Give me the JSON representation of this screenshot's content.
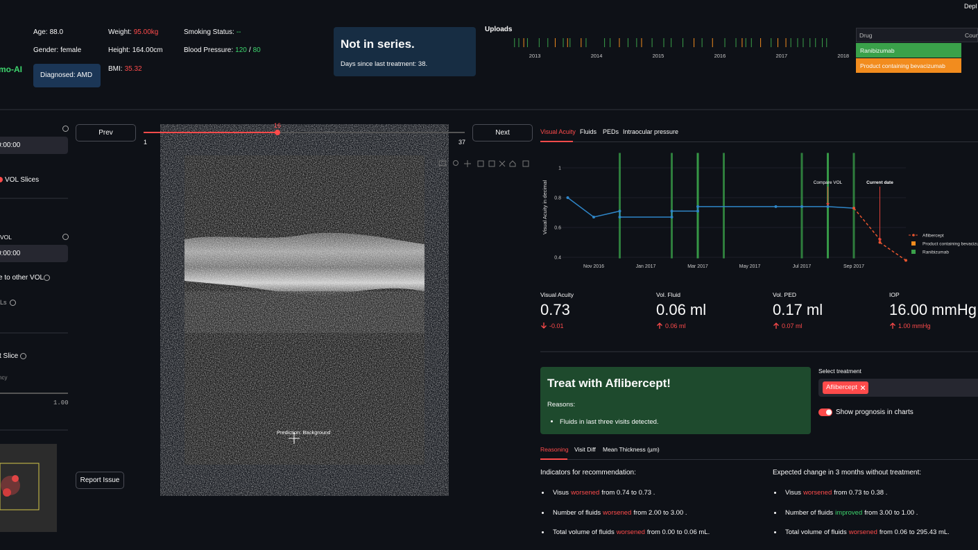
{
  "header": {
    "logo": "mo-AI",
    "deploy": "Depl",
    "fields": [
      {
        "label": "Age:",
        "value": "88.0"
      },
      {
        "label": "Gender:",
        "value": "female"
      },
      {
        "label": "Weight:",
        "value": "95.00kg",
        "color": "#ff4b4b"
      },
      {
        "label": "Height:",
        "value": "164.00cm"
      },
      {
        "label": "BMI:",
        "value": "35.32",
        "color": "#ff4b4b"
      },
      {
        "label": "Smoking Status:",
        "value": "--",
        "color": "#3dd56d"
      }
    ],
    "blood_pressure": {
      "label": "Blood Pressure:",
      "systolic": "120",
      "separator": "/",
      "diastolic": "80",
      "color": "#3dd56d"
    },
    "diagnosis": "Diagnosed: AMD",
    "series_box": {
      "title": "Not in series.",
      "text": "Days since last treatment: 38."
    },
    "uploads": {
      "title": "Uploads",
      "xlim": [
        2012.65,
        2018.16
      ],
      "xticks": [
        2013,
        2014,
        2015,
        2016,
        2017,
        2018
      ],
      "events": [
        {
          "color": "#3aa14a",
          "x": [
            2012.67,
            2012.74,
            2012.88,
            2013.07,
            2013.21,
            2013.46,
            2013.57,
            2013.83,
            2014.13,
            2014.22,
            2014.51,
            2014.65,
            2014.9,
            2015.09,
            2015.21,
            2015.4,
            2015.71,
            2016.08,
            2016.26,
            2016.42,
            2016.51,
            2016.83,
            2017.15,
            2017.26,
            2017.35,
            2017.46,
            2017.55,
            2017.66,
            2017.73
          ]
        },
        {
          "color": "#f28c1e",
          "x": [
            2012.82,
            2013.33,
            2013.53,
            2013.75,
            2014.37,
            2014.73,
            2015.58,
            2015.88,
            2016.36,
            2016.66,
            2016.94,
            2017.07
          ]
        }
      ]
    },
    "drug_table": {
      "columns": [
        "Drug",
        "Coun"
      ],
      "rows": [
        {
          "drug": "Ranibizumab",
          "color": "#3aa14a"
        },
        {
          "drug": "Product containing bevacizumab",
          "color": "#f28c1e"
        }
      ]
    }
  },
  "sidebar": {
    "select_1": "0:00:00",
    "checkbox": "VOL Slices",
    "label_vol": "VOL",
    "select_2": "0:00:00",
    "toggle": "e to other VOL",
    "label_ls": "Ls",
    "slice_label": "t Slice",
    "slider_label": "ncy",
    "slider_max": "1.00"
  },
  "viewer": {
    "prev": "Prev",
    "next": "Next",
    "slider": {
      "min": 1,
      "max": 37,
      "value": 16
    },
    "prediction": "Prediction: Background",
    "report": "Report Issue"
  },
  "tabs": [
    "Visual Acuity",
    "Fluids",
    "PEDs",
    "Intraocular pressure"
  ],
  "chart_data": {
    "type": "line",
    "y_label": "Visual Acuity in decimal",
    "xlim": [
      "2016-09",
      "2017-11"
    ],
    "xticks": [
      {
        "value": "2016-11",
        "label": "Nov 2016"
      },
      {
        "value": "2017-01",
        "label": "Jan 2017"
      },
      {
        "value": "2017-03",
        "label": "Mar 2017"
      },
      {
        "value": "2017-05",
        "label": "May 2017"
      },
      {
        "value": "2017-07",
        "label": "Jul 2017"
      },
      {
        "value": "2017-09",
        "label": "Sep 2017"
      }
    ],
    "ylim": [
      0.37,
      1.1
    ],
    "yticks": [
      0.4,
      0.6,
      0.8,
      1
    ],
    "series": [
      {
        "color": "#2f86c8",
        "x": [
          "2016-10",
          "2016-11",
          "2016-12",
          "2016-12",
          "2017-02",
          "2017-02",
          "2017-03",
          "2017-03",
          "2017-06",
          "2017-07",
          "2017-08",
          "2017-09"
        ],
        "values": [
          0.8,
          0.67,
          0.71,
          0.67,
          0.67,
          0.71,
          0.71,
          0.74,
          0.74,
          0.74,
          0.74,
          0.73
        ]
      },
      {
        "name": "Aflibercept",
        "color": "#e8552f",
        "dashed": true,
        "x": [
          "2017-09",
          "2017-10",
          "2017-10",
          "2017-11"
        ],
        "values": [
          0.73,
          0.52,
          0.5,
          0.38
        ]
      }
    ],
    "events": [
      {
        "name": "Product containing bevacizumab",
        "color": "#f28c1e",
        "x": []
      },
      {
        "name": "Ranibizumab",
        "color": "#3aa14a",
        "x": [
          "2016-12",
          "2017-02",
          "2017-03",
          "2017-03",
          "2017-04",
          "2017-07",
          "2017-08",
          "2017-08",
          "2017-09"
        ]
      }
    ],
    "annotations": [
      {
        "text": "Compare VOL",
        "x": "2017-08",
        "y": 0.74
      },
      {
        "text": "Current date",
        "x": "2017-10",
        "y": 0.5
      }
    ]
  },
  "metrics": [
    {
      "label": "Visual Acuity",
      "value": "0.73",
      "delta": "-0.01",
      "direction": "down"
    },
    {
      "label": "Vol. Fluid",
      "value": "0.06 ml",
      "delta": "0.06 ml",
      "direction": "up"
    },
    {
      "label": "Vol. PED",
      "value": "0.17 ml",
      "delta": "0.07 ml",
      "direction": "up"
    },
    {
      "label": "IOP",
      "value": "16.00 mmHg",
      "delta": "1.00 mmHg",
      "direction": "up"
    }
  ],
  "recommendation": {
    "title": "Treat with Aflibercept!",
    "reasons_label": "Reasons:",
    "reasons": [
      "Fluids in last three visits detected."
    ]
  },
  "treatment": {
    "label": "Select treatment",
    "selected": "Aflibercept",
    "toggle": "Show prognosis in charts"
  },
  "bottom_tabs": [
    "Reasoning",
    "Visit Diff",
    "Mean Thickness (µm)"
  ],
  "indicators": {
    "title": "Indicators for recommendation:",
    "items": [
      {
        "subject": "Visus",
        "status": "worsened",
        "detail": "from 0.74 to 0.73 .",
        "color": "#ff4b4b"
      },
      {
        "subject": "Number of fluids",
        "status": "worsened",
        "detail": "from 2.00 to 3.00 .",
        "color": "#ff4b4b"
      },
      {
        "subject": "Total volume of fluids",
        "status": "worsened",
        "detail": "from 0.00 to 0.06 mL.",
        "color": "#ff4b4b"
      }
    ]
  },
  "expected": {
    "title": "Expected change in 3 months without treatment:",
    "items": [
      {
        "subject": "Visus",
        "status": "worsened",
        "detail": "from 0.73 to 0.38 .",
        "color": "#ff4b4b"
      },
      {
        "subject": "Number of fluids",
        "status": "improved",
        "detail": "from 3.00 to 1.00 .",
        "color": "#3dd56d"
      },
      {
        "subject": "Total volume of fluids",
        "status": "worsened",
        "detail": "from 0.06 to 295.43 mL.",
        "color": "#ff4b4b"
      }
    ]
  }
}
